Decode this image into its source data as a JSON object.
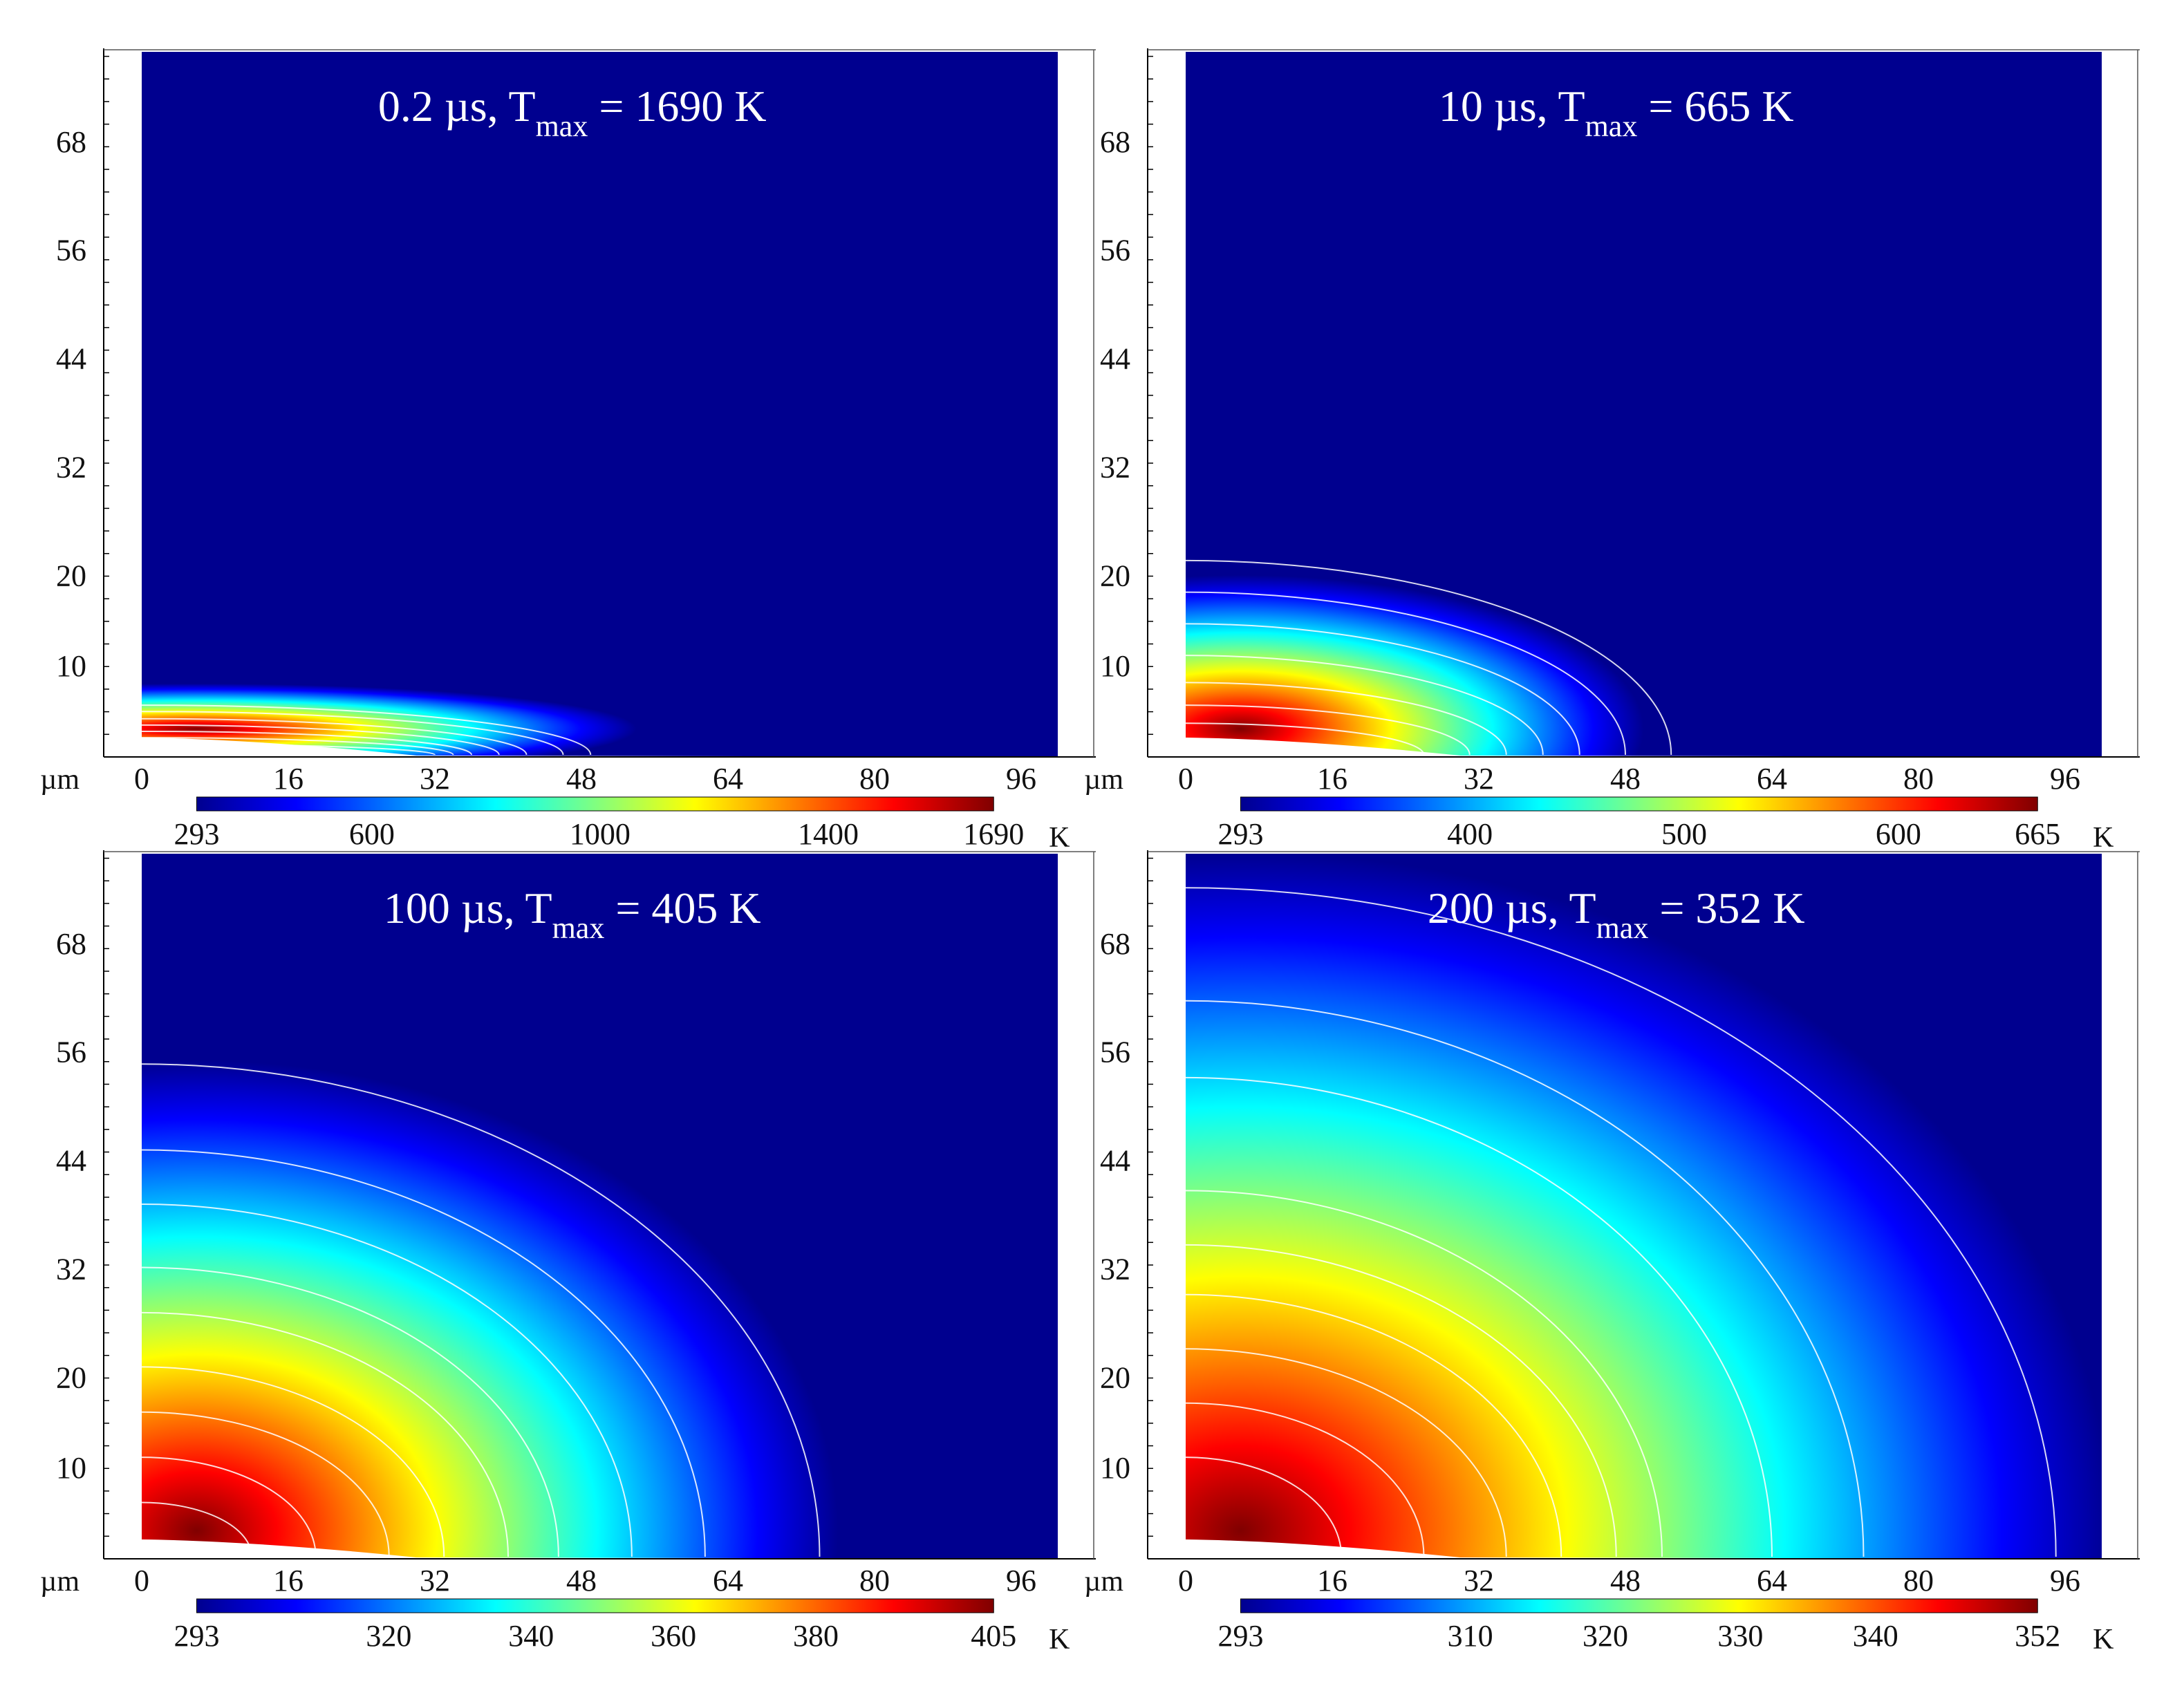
{
  "colormap": [
    "#00008f",
    "#0000ff",
    "#0080ff",
    "#00ffff",
    "#80ff80",
    "#ffff00",
    "#ff8000",
    "#ff0000",
    "#800000"
  ],
  "contour_color": "#ffffff",
  "chart_data": [
    {
      "type": "heatmap",
      "title": "0.2 µs, T",
      "title_sub": "max",
      "title_end": " = 1690 K",
      "x_unit": "µm",
      "xticks": [
        "0",
        "16",
        "32",
        "48",
        "64",
        "80",
        "96"
      ],
      "yticks": [
        "68",
        "56",
        "44",
        "32",
        "20",
        "10"
      ],
      "xlim": [
        0,
        100
      ],
      "ylim": [
        0,
        78
      ],
      "colorbar": {
        "ticks": [
          "293",
          "600",
          "1000",
          "1400",
          "1690"
        ],
        "unit": "K",
        "min": 293,
        "max": 1690
      },
      "hot_extent": {
        "x": 48,
        "y": 5
      },
      "contours": [
        {
          "x": 49,
          "y": 5.5
        },
        {
          "x": 46,
          "y": 4.8
        },
        {
          "x": 42,
          "y": 4.0
        },
        {
          "x": 39,
          "y": 3.3
        },
        {
          "x": 36,
          "y": 2.6
        },
        {
          "x": 34,
          "y": 1.9
        },
        {
          "x": 32,
          "y": 1.2
        }
      ]
    },
    {
      "type": "heatmap",
      "title": "10 µs, T",
      "title_sub": "max",
      "title_end": " = 665 K",
      "x_unit": "µm",
      "xticks": [
        "0",
        "16",
        "32",
        "48",
        "64",
        "80",
        "96"
      ],
      "yticks": [
        "68",
        "56",
        "44",
        "32",
        "20",
        "10"
      ],
      "xlim": [
        0,
        100
      ],
      "ylim": [
        0,
        78
      ],
      "colorbar": {
        "ticks": [
          "293",
          "400",
          "500",
          "600",
          "665"
        ],
        "unit": "K",
        "min": 293,
        "max": 665
      },
      "hot_extent": {
        "x": 44,
        "y": 17
      },
      "contours": [
        {
          "x": 53,
          "y": 21.5
        },
        {
          "x": 48,
          "y": 18
        },
        {
          "x": 43,
          "y": 14.5
        },
        {
          "x": 39,
          "y": 11
        },
        {
          "x": 35,
          "y": 8
        },
        {
          "x": 31,
          "y": 5.5
        },
        {
          "x": 26,
          "y": 3.5
        }
      ]
    },
    {
      "type": "heatmap",
      "title": "100 µs, T",
      "title_sub": "max",
      "title_end": " = 405 K",
      "x_unit": "µm",
      "xticks": [
        "0",
        "16",
        "32",
        "48",
        "64",
        "80",
        "96"
      ],
      "yticks": [
        "68",
        "56",
        "44",
        "32",
        "20",
        "10"
      ],
      "xlim": [
        0,
        100
      ],
      "ylim": [
        0,
        78
      ],
      "colorbar": {
        "ticks": [
          "293",
          "320",
          "340",
          "360",
          "380",
          "405"
        ],
        "unit": "K",
        "min": 293,
        "max": 405
      },
      "hot_extent": {
        "x": 70,
        "y": 52
      },
      "contours": [
        {
          "x": 74,
          "y": 54.5
        },
        {
          "x": 61.5,
          "y": 45
        },
        {
          "x": 53.5,
          "y": 39
        },
        {
          "x": 45.5,
          "y": 32
        },
        {
          "x": 40,
          "y": 27
        },
        {
          "x": 33,
          "y": 21
        },
        {
          "x": 27,
          "y": 16
        },
        {
          "x": 19,
          "y": 11
        },
        {
          "x": 12,
          "y": 6
        }
      ]
    },
    {
      "type": "heatmap",
      "title": "200 µs, T",
      "title_sub": "max",
      "title_end": " = 352 K",
      "x_unit": "µm",
      "xticks": [
        "0",
        "16",
        "32",
        "48",
        "64",
        "80",
        "96"
      ],
      "yticks": [
        "68",
        "56",
        "44",
        "32",
        "20",
        "10"
      ],
      "xlim": [
        0,
        100
      ],
      "ylim": [
        0,
        78
      ],
      "colorbar": {
        "ticks": [
          "293",
          "310",
          "320",
          "330",
          "340",
          "352"
        ],
        "unit": "K",
        "min": 293,
        "max": 352
      },
      "hot_extent": {
        "x": 95,
        "y": 75
      },
      "contours": [
        {
          "x": 95,
          "y": 74
        },
        {
          "x": 74,
          "y": 61.5
        },
        {
          "x": 64,
          "y": 53
        },
        {
          "x": 52,
          "y": 40.5
        },
        {
          "x": 47,
          "y": 34.5
        },
        {
          "x": 41,
          "y": 29
        },
        {
          "x": 35,
          "y": 23
        },
        {
          "x": 26,
          "y": 17
        },
        {
          "x": 17,
          "y": 11
        }
      ]
    }
  ]
}
